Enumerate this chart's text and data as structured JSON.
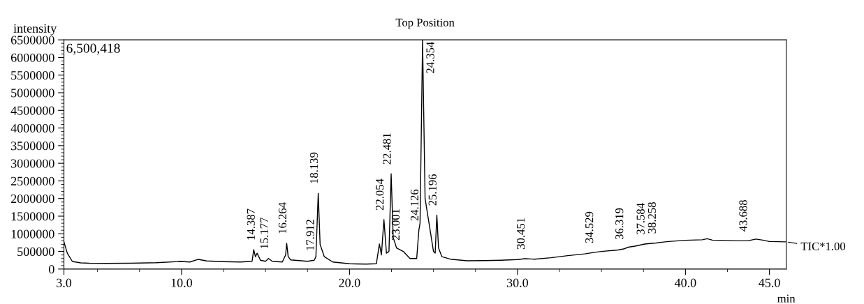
{
  "chart_data": {
    "type": "line",
    "title": "Top Position",
    "xlabel": "min",
    "ylabel": "intensity",
    "xlim": [
      3.0,
      46.0
    ],
    "ylim": [
      0,
      6500418
    ],
    "xticks": [
      {
        "value": 3,
        "label": "3.0"
      },
      {
        "value": 10,
        "label": "10.0"
      },
      {
        "value": 20,
        "label": "20.0"
      },
      {
        "value": 30,
        "label": "30.0"
      },
      {
        "value": 40,
        "label": "40.0"
      },
      {
        "value": 45,
        "label": "45.0"
      }
    ],
    "yticks": [
      0,
      500000,
      1000000,
      1500000,
      2000000,
      2500000,
      3000000,
      3500000,
      4000000,
      4500000,
      5000000,
      5500000,
      6000000,
      6500000
    ],
    "grid": false,
    "legend": false,
    "marker": "none",
    "line_style": "solid",
    "series": [
      {
        "color": "#000000",
        "x": [
          3.0,
          3.2,
          3.5,
          4.0,
          4.5,
          5.5,
          7.0,
          8.5,
          10.0,
          10.5,
          11.0,
          11.5,
          12.5,
          13.5,
          14.2,
          14.3,
          14.4,
          14.5,
          14.7,
          15.0,
          15.18,
          15.4,
          16.0,
          16.2,
          16.26,
          16.35,
          16.5,
          17.5,
          17.9,
          18.0,
          18.14,
          18.25,
          18.5,
          19.0,
          20.0,
          21.0,
          21.6,
          21.78,
          21.9,
          22.05,
          22.2,
          22.35,
          22.48,
          22.6,
          22.8,
          23.0,
          23.2,
          23.6,
          24.0,
          24.13,
          24.2,
          24.35,
          24.5,
          24.8,
          25.0,
          25.1,
          25.2,
          25.3,
          25.5,
          26.0,
          27.0,
          28.0,
          29.0,
          30.0,
          30.45,
          31.0,
          32.0,
          33.0,
          34.0,
          34.53,
          35.0,
          36.0,
          36.32,
          36.6,
          37.0,
          37.58,
          38.0,
          38.26,
          38.6,
          39.0,
          40.0,
          41.0,
          41.3,
          41.6,
          42.5,
          43.0,
          43.7,
          44.2,
          44.6,
          45.0,
          46.0
        ],
        "values": [
          770000,
          450000,
          215000,
          175000,
          165000,
          160000,
          165000,
          180000,
          215000,
          200000,
          275000,
          230000,
          210000,
          200000,
          220000,
          550000,
          350000,
          450000,
          250000,
          220000,
          300000,
          220000,
          200000,
          400000,
          730000,
          350000,
          260000,
          220000,
          250000,
          350000,
          2150000,
          700000,
          350000,
          200000,
          150000,
          140000,
          150000,
          710000,
          400000,
          1400000,
          450000,
          500000,
          2700000,
          900000,
          600000,
          550000,
          500000,
          300000,
          300000,
          1100000,
          1300000,
          6500418,
          2000000,
          1100000,
          500000,
          450000,
          1530000,
          600000,
          350000,
          280000,
          235000,
          240000,
          250000,
          270000,
          295000,
          280000,
          320000,
          380000,
          430000,
          470000,
          500000,
          540000,
          570000,
          620000,
          650000,
          710000,
          730000,
          740000,
          760000,
          780000,
          815000,
          830000,
          860000,
          820000,
          810000,
          800000,
          800000,
          850000,
          820000,
          780000,
          770000
        ]
      }
    ],
    "annotations": [
      "6,500,418",
      "TIC*1.00",
      {
        "text": "14.387",
        "x": 14.387,
        "y": 550000
      },
      {
        "text": "15.177",
        "x": 15.177,
        "y": 300000
      },
      {
        "text": "16.264",
        "x": 16.264,
        "y": 730000
      },
      {
        "text": "17.912",
        "x": 17.912,
        "y": 250000
      },
      {
        "text": "18.139",
        "x": 18.139,
        "y": 2150000
      },
      {
        "text": "22.054",
        "x": 22.054,
        "y": 1400000
      },
      {
        "text": "22.481",
        "x": 22.481,
        "y": 2700000
      },
      {
        "text": "23.001",
        "x": 23.001,
        "y": 550000
      },
      {
        "text": "24.126",
        "x": 24.126,
        "y": 1100000
      },
      {
        "text": "24.354",
        "x": 24.354,
        "y": 6500418
      },
      {
        "text": "25.196",
        "x": 25.196,
        "y": 1530000
      },
      {
        "text": "30.451",
        "x": 30.451,
        "y": 295000
      },
      {
        "text": "34.529",
        "x": 34.529,
        "y": 470000
      },
      {
        "text": "36.319",
        "x": 36.319,
        "y": 570000
      },
      {
        "text": "37.584",
        "x": 37.584,
        "y": 710000
      },
      {
        "text": "38.258",
        "x": 38.258,
        "y": 740000
      },
      {
        "text": "43.688",
        "x": 43.688,
        "y": 800000
      }
    ]
  }
}
